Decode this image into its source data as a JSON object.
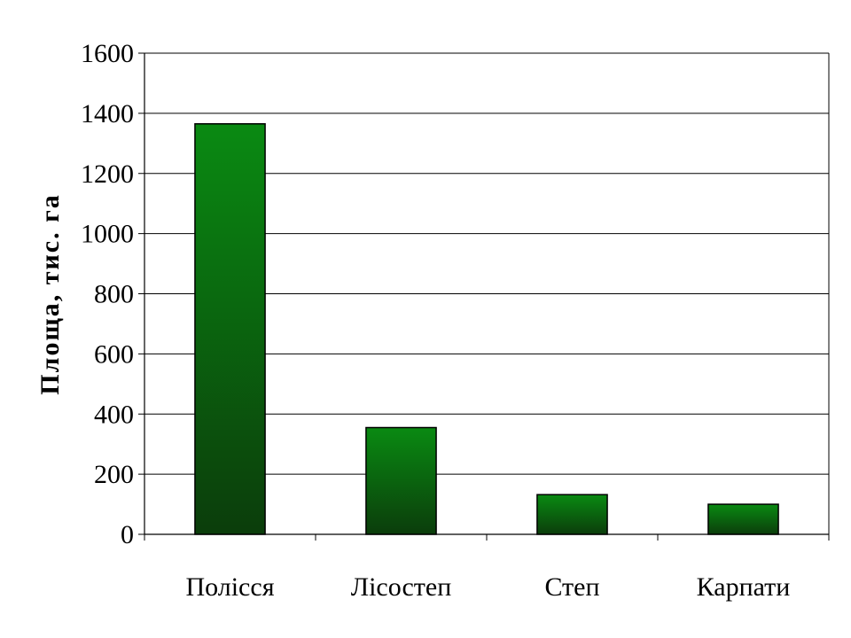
{
  "chart_data": {
    "type": "bar",
    "categories": [
      "Полісся",
      "Лісостеп",
      "Степ",
      "Карпати"
    ],
    "values": [
      1365,
      355,
      132,
      100
    ],
    "title": "",
    "xlabel": "",
    "ylabel": "Площа, тис. га",
    "ylim": [
      0,
      1600
    ],
    "yticks": [
      "0",
      "200",
      "400",
      "600",
      "800",
      "1000",
      "1200",
      "1400",
      "1600"
    ],
    "grid": true,
    "legend": "none",
    "colors": {
      "bar_top": "#0a8a12",
      "bar_bottom": "#0b3d0b",
      "bar_stroke": "#000000",
      "grid": "#000000"
    }
  }
}
